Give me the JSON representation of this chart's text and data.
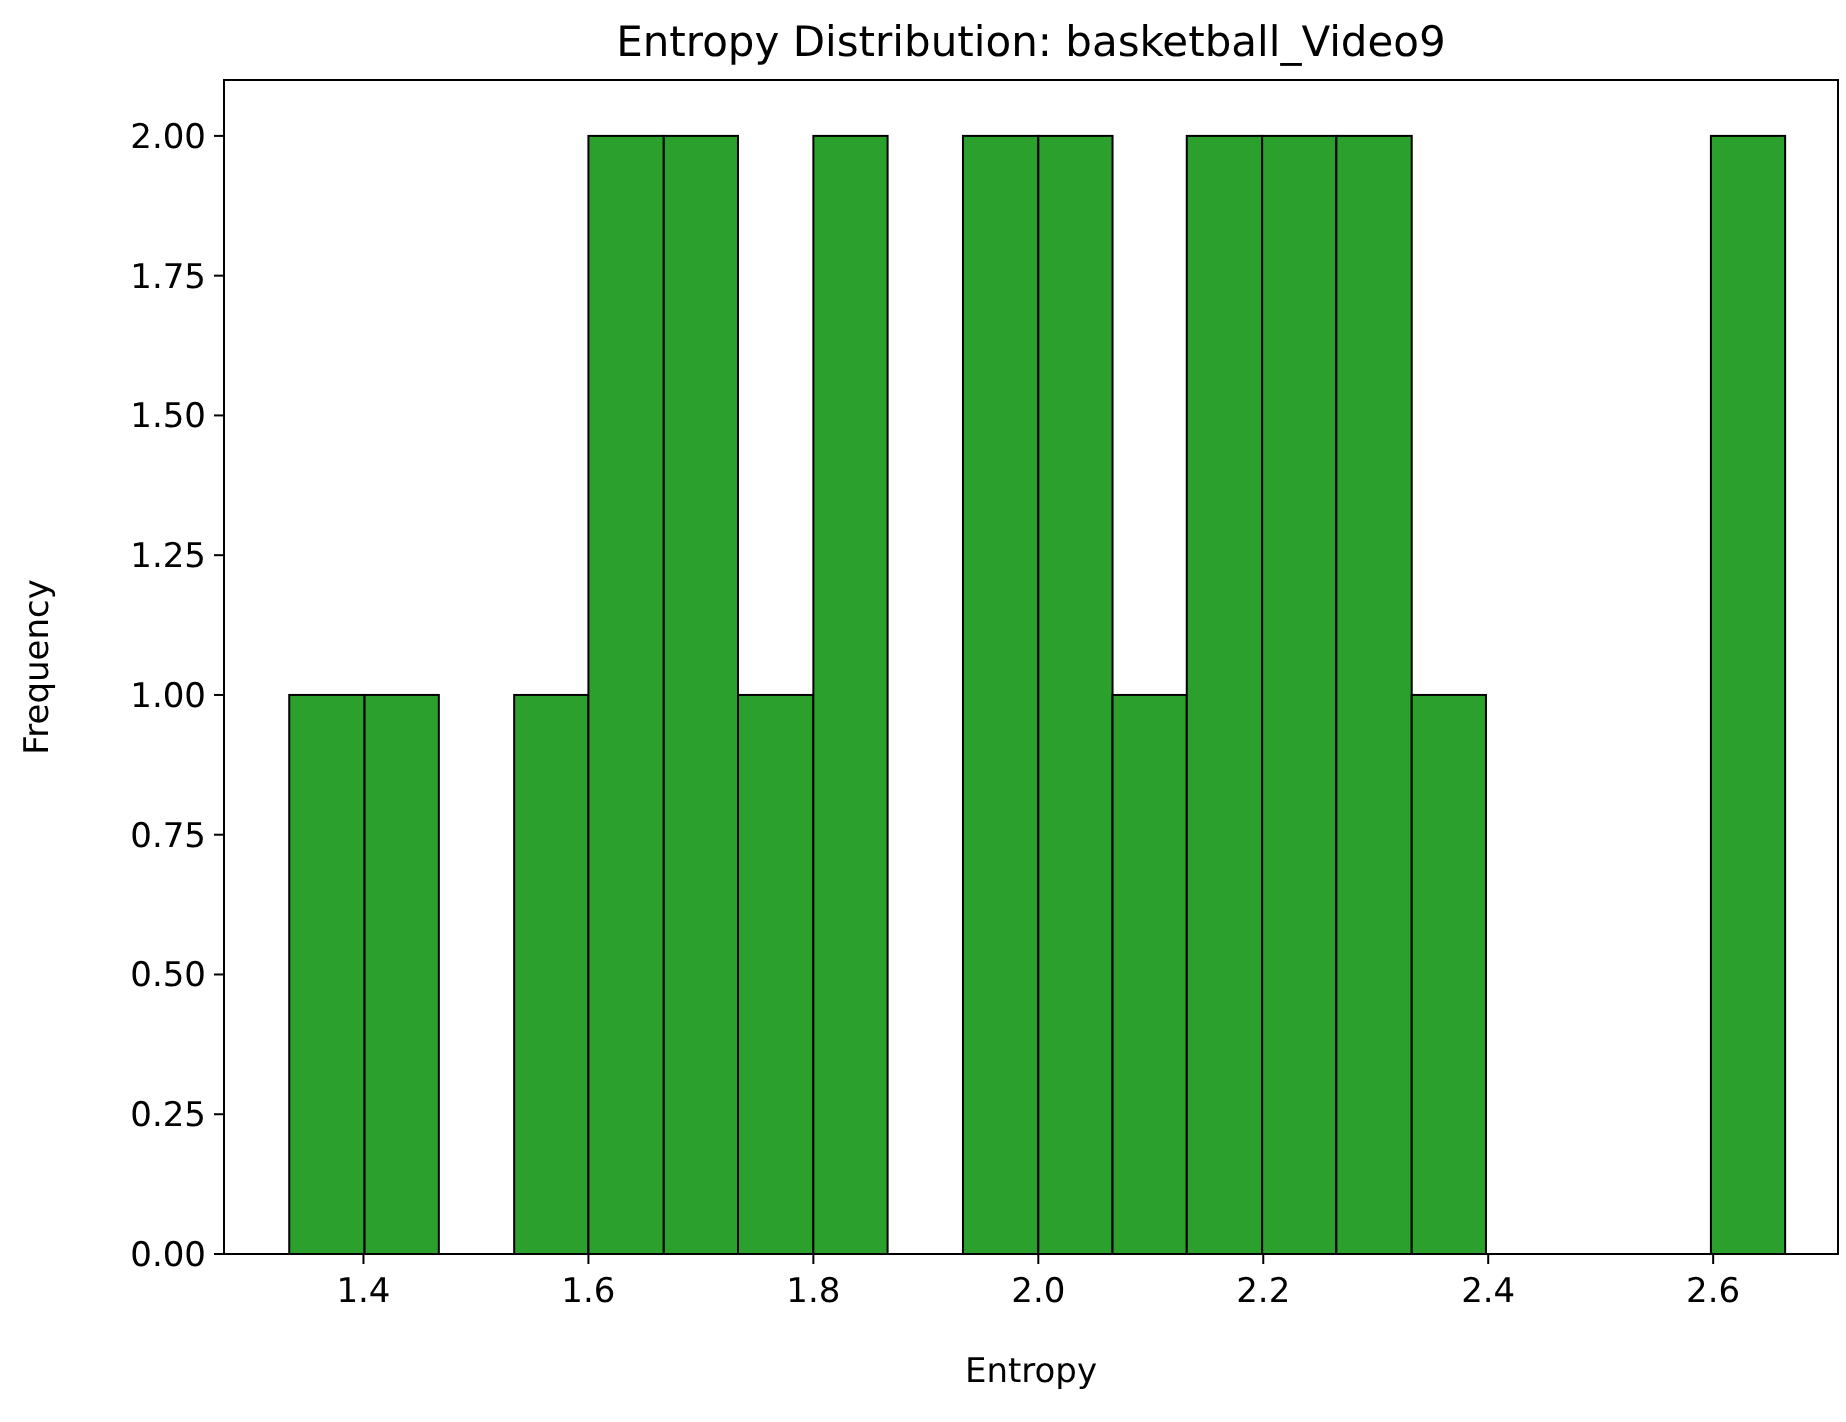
{
  "chart_data": {
    "type": "histogram",
    "title": "Entropy Distribution: basketball_Video9",
    "xlabel": "Entropy",
    "ylabel": "Frequency",
    "color": "#2ca02c",
    "bins": [
      1.334,
      1.401,
      1.467,
      1.534,
      1.6,
      1.667,
      1.733,
      1.8,
      1.866,
      1.933,
      2.0,
      2.066,
      2.132,
      2.199,
      2.265,
      2.332,
      2.398,
      2.598,
      2.664
    ],
    "values": [
      1,
      1,
      0,
      1,
      2,
      2,
      1,
      2,
      0,
      2,
      2,
      1,
      2,
      2,
      2,
      1,
      0,
      2
    ],
    "xlim": [
      1.276,
      2.711
    ],
    "ylim": [
      0,
      2.1
    ],
    "xticks": [
      1.4,
      1.6,
      1.8,
      {
        "value": 2,
        "label": "2.0"
      },
      2.2,
      2.4,
      2.6
    ],
    "yticks": [
      {
        "value": 0,
        "label": "0.00"
      },
      {
        "value": 0.25,
        "label": "0.25"
      },
      {
        "value": 0.5,
        "label": "0.50"
      },
      {
        "value": 0.75,
        "label": "0.75"
      },
      {
        "value": 1,
        "label": "1.00"
      },
      {
        "value": 1.25,
        "label": "1.25"
      },
      {
        "value": 1.5,
        "label": "1.50"
      },
      {
        "value": 1.75,
        "label": "1.75"
      },
      {
        "value": 2,
        "label": "2.00"
      }
    ],
    "grid": false
  }
}
